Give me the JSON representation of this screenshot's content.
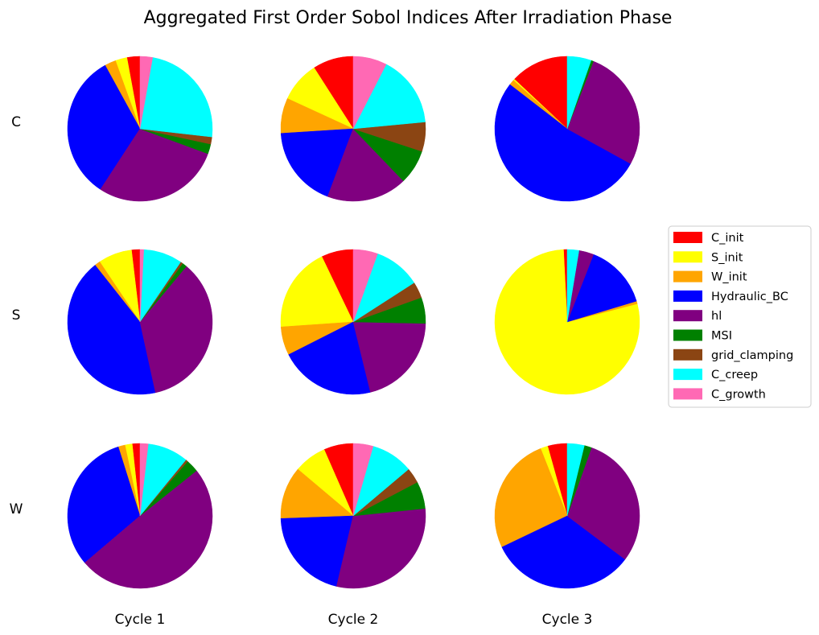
{
  "chart_data": {
    "type": "pie",
    "title": "Aggregated First Order Sobol Indices After Irradiation Phase",
    "rows": [
      "C",
      "S",
      "W"
    ],
    "columns": [
      "Cycle 1",
      "Cycle 2",
      "Cycle 3"
    ],
    "legend_placement": "right",
    "legend": [
      {
        "name": "C_init",
        "color": "#ff0000"
      },
      {
        "name": "S_init",
        "color": "#ffff00"
      },
      {
        "name": "W_init",
        "color": "#ffa500"
      },
      {
        "name": "Hydraulic_BC",
        "color": "#0000ff"
      },
      {
        "name": "hl",
        "color": "#800080"
      },
      {
        "name": "MSI",
        "color": "#008000"
      },
      {
        "name": "grid_clamping",
        "color": "#8b4513"
      },
      {
        "name": "C_creep",
        "color": "#00ffff"
      },
      {
        "name": "C_growth",
        "color": "#ff69b4"
      }
    ],
    "pies": [
      [
        {
          "row": "C",
          "column": "Cycle 1",
          "values": [
            0.029,
            0.026,
            0.025,
            0.328,
            0.286,
            0.022,
            0.016,
            0.24,
            0.028
          ]
        },
        {
          "row": "C",
          "column": "Cycle 2",
          "values": [
            0.083,
            0.083,
            0.072,
            0.167,
            0.164,
            0.071,
            0.06,
            0.146,
            0.069
          ]
        },
        {
          "row": "C",
          "column": "Cycle 3",
          "values": [
            0.119,
            0.003,
            0.011,
            0.48,
            0.248,
            0.005,
            0.0,
            0.049,
            0.0
          ]
        }
      ],
      [
        {
          "row": "S",
          "column": "Cycle 1",
          "values": [
            0.018,
            0.072,
            0.012,
            0.41,
            0.34,
            0.01,
            0.005,
            0.083,
            0.008
          ]
        },
        {
          "row": "S",
          "column": "Cycle 2",
          "values": [
            0.065,
            0.173,
            0.058,
            0.195,
            0.19,
            0.053,
            0.033,
            0.095,
            0.05
          ]
        },
        {
          "row": "S",
          "column": "Cycle 3",
          "values": [
            0.008,
            0.78,
            0.006,
            0.144,
            0.033,
            0.0,
            0.0,
            0.026,
            0.0
          ]
        }
      ],
      [
        {
          "row": "W",
          "column": "Cycle 1",
          "values": [
            0.017,
            0.016,
            0.015,
            0.31,
            0.49,
            0.028,
            0.005,
            0.09,
            0.018
          ]
        },
        {
          "row": "W",
          "column": "Cycle 2",
          "values": [
            0.065,
            0.072,
            0.116,
            0.205,
            0.3,
            0.06,
            0.034,
            0.093,
            0.044
          ]
        },
        {
          "row": "W",
          "column": "Cycle 3",
          "values": [
            0.04,
            0.015,
            0.24,
            0.3,
            0.274,
            0.015,
            0.0,
            0.035,
            0.0
          ]
        }
      ]
    ]
  }
}
